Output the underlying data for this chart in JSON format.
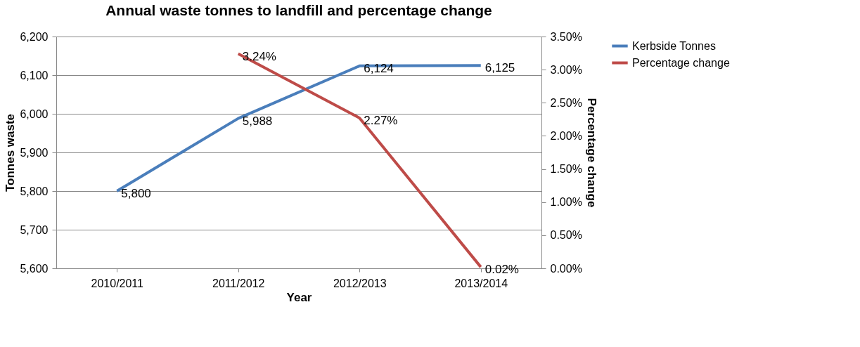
{
  "chart_data": {
    "type": "line",
    "title": "Annual waste tonnes to landfill and percentage change",
    "xlabel": "Year",
    "ylabel": "Tonnes waste",
    "y2label": "Percentage change",
    "categories": [
      "2010/2011",
      "2011/2012",
      "2012/2013",
      "2013/2014"
    ],
    "series": [
      {
        "name": "Kerbside Tonnes",
        "color": "#4a7ebb",
        "values": [
          5800,
          5988,
          6124,
          6125
        ],
        "value_labels": [
          "5,800",
          "5,988",
          "6,124",
          "6,125"
        ]
      },
      {
        "name": "Percentage change",
        "color": "#be4b48",
        "axis": "y2",
        "values": [
          null,
          3.24,
          2.27,
          0.02
        ],
        "value_labels": [
          null,
          "3.24%",
          "2.27%",
          "0.02%"
        ]
      }
    ],
    "ylim": [
      5600,
      6200
    ],
    "yticks": [
      {
        "value": 5600,
        "label": "5,600"
      },
      {
        "value": 5700,
        "label": "5,700"
      },
      {
        "value": 5800,
        "label": "5,800"
      },
      {
        "value": 5900,
        "label": "5,900"
      },
      {
        "value": 6000,
        "label": "6,000"
      },
      {
        "value": 6100,
        "label": "6,100"
      },
      {
        "value": 6200,
        "label": "6,200"
      }
    ],
    "y2lim": [
      0,
      3.5
    ],
    "y2ticks": [
      {
        "value": 0,
        "label": "0.00%"
      },
      {
        "value": 0.5,
        "label": "0.50%"
      },
      {
        "value": 1,
        "label": "1.00%"
      },
      {
        "value": 1.5,
        "label": "1.50%"
      },
      {
        "value": 2,
        "label": "2.00%"
      },
      {
        "value": 2.5,
        "label": "2.50%"
      },
      {
        "value": 3,
        "label": "3.00%"
      },
      {
        "value": 3.5,
        "label": "3.50%"
      }
    ],
    "grid": "y",
    "legend": "right",
    "marker": "none",
    "line_style": "solid"
  }
}
